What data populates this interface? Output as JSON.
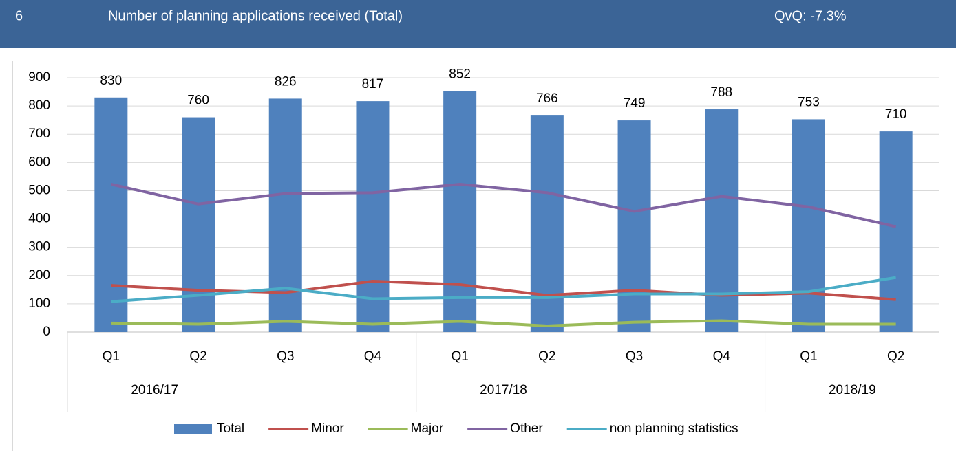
{
  "header": {
    "number": "6",
    "title": "Number of planning applications received (Total)",
    "qvq": "QvQ: -7.3%"
  },
  "chart_data": {
    "type": "bar",
    "categories": [
      "Q1",
      "Q2",
      "Q3",
      "Q4",
      "Q1",
      "Q2",
      "Q3",
      "Q4",
      "Q1",
      "Q2"
    ],
    "groups": [
      {
        "label": "2016/17",
        "size": 4
      },
      {
        "label": "2017/18",
        "size": 4
      },
      {
        "label": "2018/19",
        "size": 2
      }
    ],
    "series": [
      {
        "name": "Total",
        "type": "bar",
        "color": "#4f81bd",
        "values": [
          830,
          760,
          826,
          817,
          852,
          766,
          749,
          788,
          753,
          710
        ]
      },
      {
        "name": "Minor",
        "type": "line",
        "color": "#c0504d",
        "values": [
          165,
          148,
          140,
          180,
          168,
          130,
          148,
          130,
          138,
          115
        ]
      },
      {
        "name": "Major",
        "type": "line",
        "color": "#9bbb59",
        "values": [
          32,
          28,
          38,
          28,
          38,
          22,
          35,
          40,
          28,
          28
        ]
      },
      {
        "name": "Other",
        "type": "line",
        "color": "#8064a2",
        "values": [
          523,
          453,
          490,
          493,
          523,
          493,
          427,
          480,
          443,
          373
        ]
      },
      {
        "name": "non planning statistics",
        "type": "line",
        "color": "#4bacc6",
        "values": [
          108,
          130,
          155,
          118,
          122,
          122,
          135,
          135,
          143,
          193
        ]
      }
    ],
    "ylim": [
      0,
      900
    ],
    "yticks": [
      0,
      100,
      200,
      300,
      400,
      500,
      600,
      700,
      800,
      900
    ],
    "grid": true,
    "legend": "bottom"
  }
}
